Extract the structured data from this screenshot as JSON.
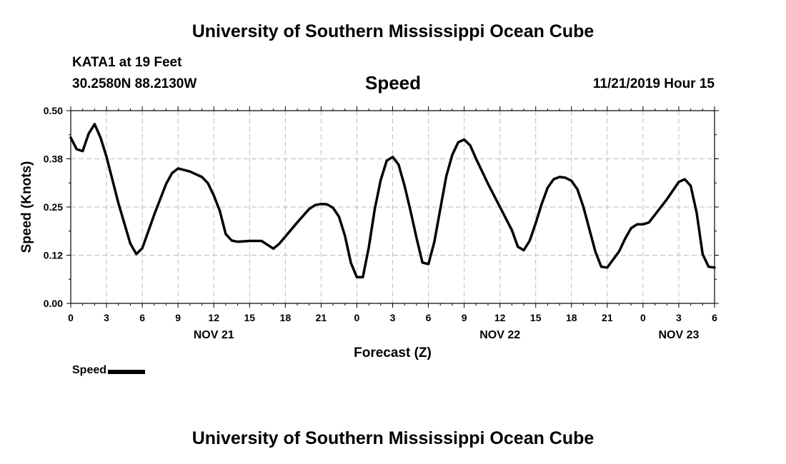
{
  "header": {
    "title": "University of Southern Mississippi Ocean Cube",
    "station": "KATA1 at 19 Feet",
    "coords": "30.2580N 88.2130W",
    "datetime": "11/21/2019 Hour 15"
  },
  "footer": {
    "title": "University of Southern Mississippi Ocean Cube"
  },
  "legend": {
    "label": "Speed",
    "color": "#000000"
  },
  "chart_data": {
    "type": "line",
    "title": "Speed",
    "xlabel": "Forecast (Z)",
    "ylabel": "Speed (Knots)",
    "ylim": [
      0,
      0.5
    ],
    "yticks": [
      "0.00",
      "0.12",
      "0.25",
      "0.38",
      "0.50"
    ],
    "xlim": [
      "2019-11-21 00Z",
      "2019-11-23 06Z"
    ],
    "x_tick_labels": [
      "0",
      "3",
      "6",
      "9",
      "12",
      "15",
      "18",
      "21",
      "0",
      "3",
      "6",
      "9",
      "12",
      "15",
      "18",
      "21",
      "0",
      "3",
      "6"
    ],
    "date_labels": [
      {
        "label": "NOV 21",
        "hour": 12
      },
      {
        "label": "NOV 22",
        "hour": 12
      },
      {
        "label": "NOV 23",
        "hour": 3
      }
    ],
    "grid": true,
    "legend_position": "bottom-left",
    "series": [
      {
        "name": "Speed",
        "color": "#000000",
        "points": [
          {
            "x": "2019-11-21 00Z",
            "y": 0.43
          },
          {
            "x": "2019-11-21 00:30Z",
            "y": 0.4
          },
          {
            "x": "2019-11-21 01Z",
            "y": 0.395
          },
          {
            "x": "2019-11-21 01:30Z",
            "y": 0.44
          },
          {
            "x": "2019-11-21 02Z",
            "y": 0.465
          },
          {
            "x": "2019-11-21 02:30Z",
            "y": 0.43
          },
          {
            "x": "2019-11-21 03Z",
            "y": 0.38
          },
          {
            "x": "2019-11-21 04Z",
            "y": 0.26
          },
          {
            "x": "2019-11-21 05Z",
            "y": 0.155
          },
          {
            "x": "2019-11-21 05:30Z",
            "y": 0.128
          },
          {
            "x": "2019-11-21 06Z",
            "y": 0.143
          },
          {
            "x": "2019-11-21 07Z",
            "y": 0.23
          },
          {
            "x": "2019-11-21 08Z",
            "y": 0.31
          },
          {
            "x": "2019-11-21 08:30Z",
            "y": 0.338
          },
          {
            "x": "2019-11-21 09Z",
            "y": 0.35
          },
          {
            "x": "2019-11-21 10Z",
            "y": 0.342
          },
          {
            "x": "2019-11-21 11Z",
            "y": 0.328
          },
          {
            "x": "2019-11-21 11:30Z",
            "y": 0.312
          },
          {
            "x": "2019-11-21 12Z",
            "y": 0.28
          },
          {
            "x": "2019-11-21 12:30Z",
            "y": 0.24
          },
          {
            "x": "2019-11-21 13Z",
            "y": 0.18
          },
          {
            "x": "2019-11-21 13:30Z",
            "y": 0.163
          },
          {
            "x": "2019-11-21 14Z",
            "y": 0.16
          },
          {
            "x": "2019-11-21 15Z",
            "y": 0.162
          },
          {
            "x": "2019-11-21 16Z",
            "y": 0.162
          },
          {
            "x": "2019-11-21 17Z",
            "y": 0.142
          },
          {
            "x": "2019-11-21 17:30Z",
            "y": 0.155
          },
          {
            "x": "2019-11-21 19Z",
            "y": 0.21
          },
          {
            "x": "2019-11-21 20Z",
            "y": 0.245
          },
          {
            "x": "2019-11-21 20:30Z",
            "y": 0.255
          },
          {
            "x": "2019-11-21 21Z",
            "y": 0.258
          },
          {
            "x": "2019-11-21 21:30Z",
            "y": 0.257
          },
          {
            "x": "2019-11-21 22Z",
            "y": 0.248
          },
          {
            "x": "2019-11-21 22:30Z",
            "y": 0.225
          },
          {
            "x": "2019-11-21 23Z",
            "y": 0.175
          },
          {
            "x": "2019-11-21 23:30Z",
            "y": 0.105
          },
          {
            "x": "2019-11-22 00Z",
            "y": 0.068
          },
          {
            "x": "2019-11-22 00:30Z",
            "y": 0.068
          },
          {
            "x": "2019-11-22 01Z",
            "y": 0.145
          },
          {
            "x": "2019-11-22 01:30Z",
            "y": 0.245
          },
          {
            "x": "2019-11-22 02Z",
            "y": 0.32
          },
          {
            "x": "2019-11-22 02:30Z",
            "y": 0.37
          },
          {
            "x": "2019-11-22 03Z",
            "y": 0.38
          },
          {
            "x": "2019-11-22 03:30Z",
            "y": 0.36
          },
          {
            "x": "2019-11-22 04Z",
            "y": 0.305
          },
          {
            "x": "2019-11-22 04:30Z",
            "y": 0.24
          },
          {
            "x": "2019-11-22 05Z",
            "y": 0.17
          },
          {
            "x": "2019-11-22 05:30Z",
            "y": 0.106
          },
          {
            "x": "2019-11-22 06Z",
            "y": 0.102
          },
          {
            "x": "2019-11-22 06:30Z",
            "y": 0.16
          },
          {
            "x": "2019-11-22 07Z",
            "y": 0.245
          },
          {
            "x": "2019-11-22 07:30Z",
            "y": 0.33
          },
          {
            "x": "2019-11-22 08Z",
            "y": 0.385
          },
          {
            "x": "2019-11-22 08:30Z",
            "y": 0.418
          },
          {
            "x": "2019-11-22 09Z",
            "y": 0.425
          },
          {
            "x": "2019-11-22 09:30Z",
            "y": 0.41
          },
          {
            "x": "2019-11-22 10Z",
            "y": 0.375
          },
          {
            "x": "2019-11-22 11Z",
            "y": 0.31
          },
          {
            "x": "2019-11-22 12Z",
            "y": 0.25
          },
          {
            "x": "2019-11-22 13Z",
            "y": 0.19
          },
          {
            "x": "2019-11-22 13:30Z",
            "y": 0.147
          },
          {
            "x": "2019-11-22 14Z",
            "y": 0.138
          },
          {
            "x": "2019-11-22 14:30Z",
            "y": 0.163
          },
          {
            "x": "2019-11-22 15Z",
            "y": 0.208
          },
          {
            "x": "2019-11-22 15:30Z",
            "y": 0.258
          },
          {
            "x": "2019-11-22 16Z",
            "y": 0.3
          },
          {
            "x": "2019-11-22 16:30Z",
            "y": 0.322
          },
          {
            "x": "2019-11-22 17Z",
            "y": 0.328
          },
          {
            "x": "2019-11-22 17:30Z",
            "y": 0.326
          },
          {
            "x": "2019-11-22 18Z",
            "y": 0.318
          },
          {
            "x": "2019-11-22 18:30Z",
            "y": 0.296
          },
          {
            "x": "2019-11-22 19Z",
            "y": 0.25
          },
          {
            "x": "2019-11-22 20Z",
            "y": 0.135
          },
          {
            "x": "2019-11-22 20:30Z",
            "y": 0.095
          },
          {
            "x": "2019-11-22 21Z",
            "y": 0.093
          },
          {
            "x": "2019-11-22 22Z",
            "y": 0.135
          },
          {
            "x": "2019-11-22 22:30Z",
            "y": 0.168
          },
          {
            "x": "2019-11-22 23Z",
            "y": 0.195
          },
          {
            "x": "2019-11-22 23:30Z",
            "y": 0.205
          },
          {
            "x": "2019-11-23 00Z",
            "y": 0.205
          },
          {
            "x": "2019-11-23 00:30Z",
            "y": 0.21
          },
          {
            "x": "2019-11-23 01Z",
            "y": 0.23
          },
          {
            "x": "2019-11-23 02Z",
            "y": 0.27
          },
          {
            "x": "2019-11-23 03Z",
            "y": 0.315
          },
          {
            "x": "2019-11-23 03:30Z",
            "y": 0.322
          },
          {
            "x": "2019-11-23 04Z",
            "y": 0.305
          },
          {
            "x": "2019-11-23 04:30Z",
            "y": 0.235
          },
          {
            "x": "2019-11-23 05Z",
            "y": 0.128
          },
          {
            "x": "2019-11-23 05:30Z",
            "y": 0.095
          },
          {
            "x": "2019-11-23 06Z",
            "y": 0.093
          }
        ]
      }
    ]
  }
}
